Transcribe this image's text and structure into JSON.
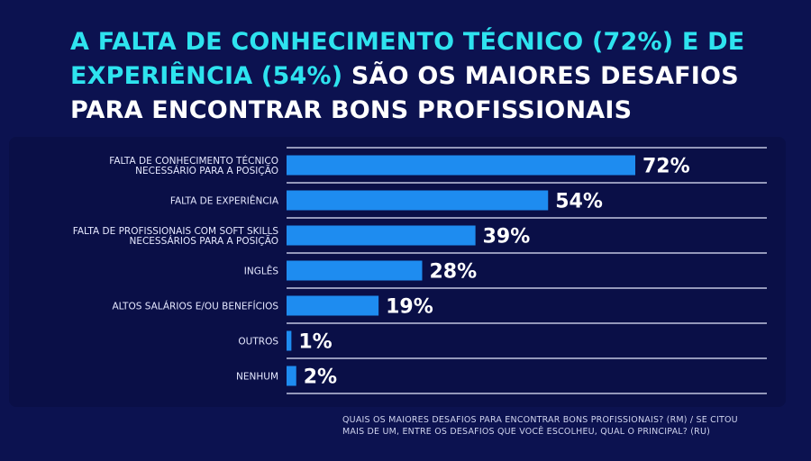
{
  "title": {
    "line1_accent": "A FALTA DE CONHECIMENTO TÉCNICO (72%) E DE",
    "line2_accent": "EXPERIÊNCIA (54%)",
    "line2_plain": " SÃO OS MAIORES DESAFIOS",
    "line3_plain": "PARA ENCONTRAR BONS PROFISSIONAIS"
  },
  "colors": {
    "background": "#0c1250",
    "bar": "#1e8cf0",
    "accent_text": "#2ee3ef",
    "gridline": "#e8ebff"
  },
  "chart_data": {
    "type": "bar",
    "orientation": "horizontal",
    "categories": [
      [
        "FALTA DE CONHECIMENTO TÉCNICO",
        "NECESSÁRIO PARA A POSIÇÃO"
      ],
      [
        "FALTA DE EXPERIÊNCIA"
      ],
      [
        "FALTA DE PROFISSIONAIS COM SOFT SKILLS",
        "NECESSÁRIOS PARA A POSIÇÃO"
      ],
      [
        "INGLÊS"
      ],
      [
        "ALTOS SALÁRIOS E/OU BENEFÍCIOS"
      ],
      [
        "OUTROS"
      ],
      [
        "NENHUM"
      ]
    ],
    "values": [
      72,
      54,
      39,
      28,
      19,
      1,
      2
    ],
    "value_labels": [
      "72%",
      "54%",
      "39%",
      "28%",
      "19%",
      "1%",
      "2%"
    ],
    "xlim": [
      0,
      100
    ]
  },
  "footnote": {
    "line1": "QUAIS OS MAIORES DESAFIOS PARA ENCONTRAR BONS PROFISSIONAIS? (RM) / SE CITOU",
    "line2": "MAIS DE UM, ENTRE OS DESAFIOS QUE VOCÊ ESCOLHEU, QUAL O PRINCIPAL? (RU)"
  }
}
